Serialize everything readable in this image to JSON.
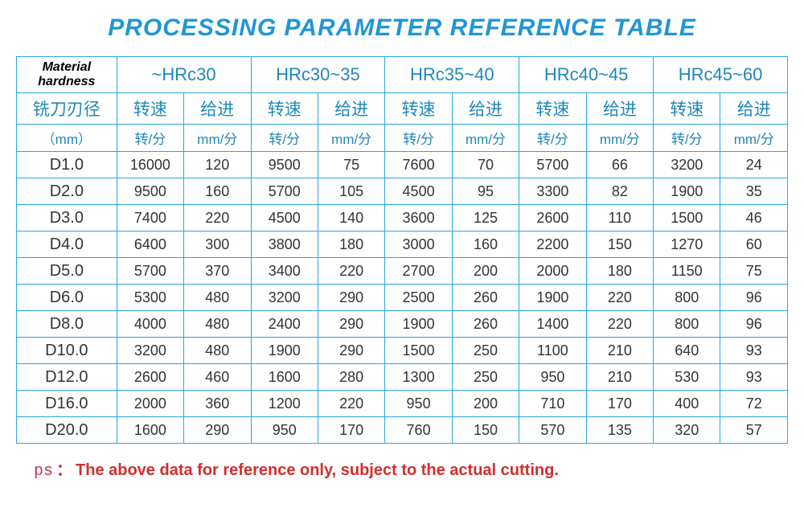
{
  "colors": {
    "title": "#2196d4",
    "border": "#29a6e0",
    "header_text": "#1f87b9",
    "cell_text": "#333333",
    "ps_label": "#b23a48",
    "ps_text": "#d22e2e",
    "background": "#ffffff"
  },
  "title": "PROCESSING PARAMETER REFERENCE TABLE",
  "table": {
    "corner_label": "Material hardness",
    "hardness_groups": [
      "~HRc30",
      "HRc30~35",
      "HRc35~40",
      "HRc40~45",
      "HRc45~60"
    ],
    "diameter_header": "铣刀刃径",
    "diameter_unit": "（mm）",
    "speed_header": "转速",
    "feed_header": "给进",
    "speed_unit": "转/分",
    "feed_unit": "mm/分",
    "rows": [
      {
        "d": "D1.0",
        "v": [
          16000,
          120,
          9500,
          75,
          7600,
          70,
          5700,
          66,
          3200,
          24
        ]
      },
      {
        "d": "D2.0",
        "v": [
          9500,
          160,
          5700,
          105,
          4500,
          95,
          3300,
          82,
          1900,
          35
        ]
      },
      {
        "d": "D3.0",
        "v": [
          7400,
          220,
          4500,
          140,
          3600,
          125,
          2600,
          110,
          1500,
          46
        ]
      },
      {
        "d": "D4.0",
        "v": [
          6400,
          300,
          3800,
          180,
          3000,
          160,
          2200,
          150,
          1270,
          60
        ]
      },
      {
        "d": "D5.0",
        "v": [
          5700,
          370,
          3400,
          220,
          2700,
          200,
          2000,
          180,
          1150,
          75
        ]
      },
      {
        "d": "D6.0",
        "v": [
          5300,
          480,
          3200,
          290,
          2500,
          260,
          1900,
          220,
          800,
          96
        ]
      },
      {
        "d": "D8.0",
        "v": [
          4000,
          480,
          2400,
          290,
          1900,
          260,
          1400,
          220,
          800,
          96
        ]
      },
      {
        "d": "D10.0",
        "v": [
          3200,
          480,
          1900,
          290,
          1500,
          250,
          1100,
          210,
          640,
          93
        ]
      },
      {
        "d": "D12.0",
        "v": [
          2600,
          460,
          1600,
          280,
          1300,
          250,
          950,
          210,
          530,
          93
        ]
      },
      {
        "d": "D16.0",
        "v": [
          2000,
          360,
          1200,
          220,
          950,
          200,
          710,
          170,
          400,
          72
        ]
      },
      {
        "d": "D20.0",
        "v": [
          1600,
          290,
          950,
          170,
          760,
          150,
          570,
          135,
          320,
          57
        ]
      }
    ]
  },
  "footnote": {
    "ps_label": "ps",
    "colon": "：",
    "text": "The above data for reference only, subject to the actual cutting."
  },
  "fontsize": {
    "title": 30,
    "hardness": 22,
    "subheader": 21,
    "unit": 17,
    "cell": 18,
    "footnote": 20
  }
}
